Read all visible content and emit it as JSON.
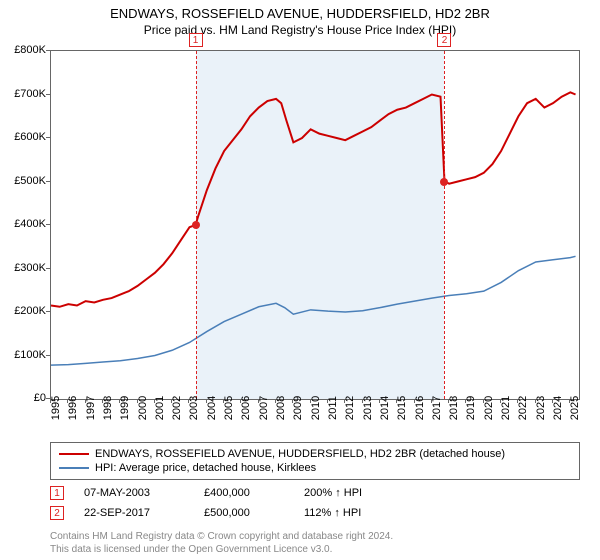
{
  "title": "ENDWAYS, ROSSEFIELD AVENUE, HUDDERSFIELD, HD2 2BR",
  "subtitle": "Price paid vs. HM Land Registry's House Price Index (HPI)",
  "chart": {
    "type": "line",
    "background_color": "#ffffff",
    "border_color": "#666666",
    "shade_color": "#dceaf5",
    "ylim": [
      0,
      800000
    ],
    "ytick_step": 100000,
    "ytick_labels": [
      "£0",
      "£100K",
      "£200K",
      "£300K",
      "£400K",
      "£500K",
      "£600K",
      "£700K",
      "£800K"
    ],
    "xlim": [
      1995,
      2025.5
    ],
    "xticks": [
      1995,
      1996,
      1997,
      1998,
      1999,
      2000,
      2001,
      2002,
      2003,
      2004,
      2005,
      2006,
      2007,
      2008,
      2009,
      2010,
      2011,
      2012,
      2013,
      2014,
      2015,
      2016,
      2017,
      2018,
      2019,
      2020,
      2021,
      2022,
      2023,
      2024,
      2025
    ],
    "series": [
      {
        "name": "ENDWAYS, ROSSEFIELD AVENUE, HUDDERSFIELD, HD2 2BR (detached house)",
        "color": "#cc0000",
        "line_width": 2,
        "data": [
          [
            1995,
            215000
          ],
          [
            1995.5,
            212000
          ],
          [
            1996,
            218000
          ],
          [
            1996.5,
            215000
          ],
          [
            1997,
            225000
          ],
          [
            1997.5,
            222000
          ],
          [
            1998,
            228000
          ],
          [
            1998.5,
            232000
          ],
          [
            1999,
            240000
          ],
          [
            1999.5,
            248000
          ],
          [
            2000,
            260000
          ],
          [
            2000.5,
            275000
          ],
          [
            2001,
            290000
          ],
          [
            2001.5,
            310000
          ],
          [
            2002,
            335000
          ],
          [
            2002.5,
            365000
          ],
          [
            2003,
            395000
          ],
          [
            2003.35,
            400000
          ],
          [
            2003.5,
            420000
          ],
          [
            2004,
            480000
          ],
          [
            2004.5,
            530000
          ],
          [
            2005,
            570000
          ],
          [
            2005.5,
            595000
          ],
          [
            2006,
            620000
          ],
          [
            2006.5,
            650000
          ],
          [
            2007,
            670000
          ],
          [
            2007.5,
            685000
          ],
          [
            2008,
            690000
          ],
          [
            2008.3,
            680000
          ],
          [
            2008.6,
            640000
          ],
          [
            2009,
            590000
          ],
          [
            2009.5,
            600000
          ],
          [
            2010,
            620000
          ],
          [
            2010.5,
            610000
          ],
          [
            2011,
            605000
          ],
          [
            2011.5,
            600000
          ],
          [
            2012,
            595000
          ],
          [
            2012.5,
            605000
          ],
          [
            2013,
            615000
          ],
          [
            2013.5,
            625000
          ],
          [
            2014,
            640000
          ],
          [
            2014.5,
            655000
          ],
          [
            2015,
            665000
          ],
          [
            2015.5,
            670000
          ],
          [
            2016,
            680000
          ],
          [
            2016.5,
            690000
          ],
          [
            2017,
            700000
          ],
          [
            2017.5,
            695000
          ],
          [
            2017.73,
            500000
          ],
          [
            2018,
            495000
          ],
          [
            2018.5,
            500000
          ],
          [
            2019,
            505000
          ],
          [
            2019.5,
            510000
          ],
          [
            2020,
            520000
          ],
          [
            2020.5,
            540000
          ],
          [
            2021,
            570000
          ],
          [
            2021.5,
            610000
          ],
          [
            2022,
            650000
          ],
          [
            2022.5,
            680000
          ],
          [
            2023,
            690000
          ],
          [
            2023.5,
            670000
          ],
          [
            2024,
            680000
          ],
          [
            2024.5,
            695000
          ],
          [
            2025,
            705000
          ],
          [
            2025.3,
            700000
          ]
        ]
      },
      {
        "name": "HPI: Average price, detached house, Kirklees",
        "color": "#4a7fb8",
        "line_width": 1.5,
        "data": [
          [
            1995,
            78000
          ],
          [
            1996,
            79000
          ],
          [
            1997,
            82000
          ],
          [
            1998,
            85000
          ],
          [
            1999,
            88000
          ],
          [
            2000,
            93000
          ],
          [
            2001,
            100000
          ],
          [
            2002,
            112000
          ],
          [
            2003,
            130000
          ],
          [
            2004,
            155000
          ],
          [
            2005,
            178000
          ],
          [
            2006,
            195000
          ],
          [
            2007,
            212000
          ],
          [
            2008,
            220000
          ],
          [
            2008.5,
            210000
          ],
          [
            2009,
            195000
          ],
          [
            2010,
            205000
          ],
          [
            2011,
            202000
          ],
          [
            2012,
            200000
          ],
          [
            2013,
            203000
          ],
          [
            2014,
            210000
          ],
          [
            2015,
            218000
          ],
          [
            2016,
            225000
          ],
          [
            2017,
            232000
          ],
          [
            2018,
            238000
          ],
          [
            2019,
            242000
          ],
          [
            2020,
            248000
          ],
          [
            2021,
            268000
          ],
          [
            2022,
            295000
          ],
          [
            2023,
            315000
          ],
          [
            2024,
            320000
          ],
          [
            2025,
            325000
          ],
          [
            2025.3,
            328000
          ]
        ]
      }
    ],
    "markers": [
      {
        "id": "1",
        "x": 2003.35,
        "y": 400000
      },
      {
        "id": "2",
        "x": 2017.73,
        "y": 500000
      }
    ],
    "shade_range": [
      2003.35,
      2017.73
    ],
    "marker_color": "#cc0000",
    "marker_box_bg": "#ffffff"
  },
  "sales": [
    {
      "id": "1",
      "date": "07-MAY-2003",
      "price": "£400,000",
      "pct": "200% ↑ HPI"
    },
    {
      "id": "2",
      "date": "22-SEP-2017",
      "price": "£500,000",
      "pct": "112% ↑ HPI"
    }
  ],
  "footer_line1": "Contains HM Land Registry data © Crown copyright and database right 2024.",
  "footer_line2": "This data is licensed under the Open Government Licence v3.0.",
  "label_fontsize": 11,
  "title_fontsize": 13
}
